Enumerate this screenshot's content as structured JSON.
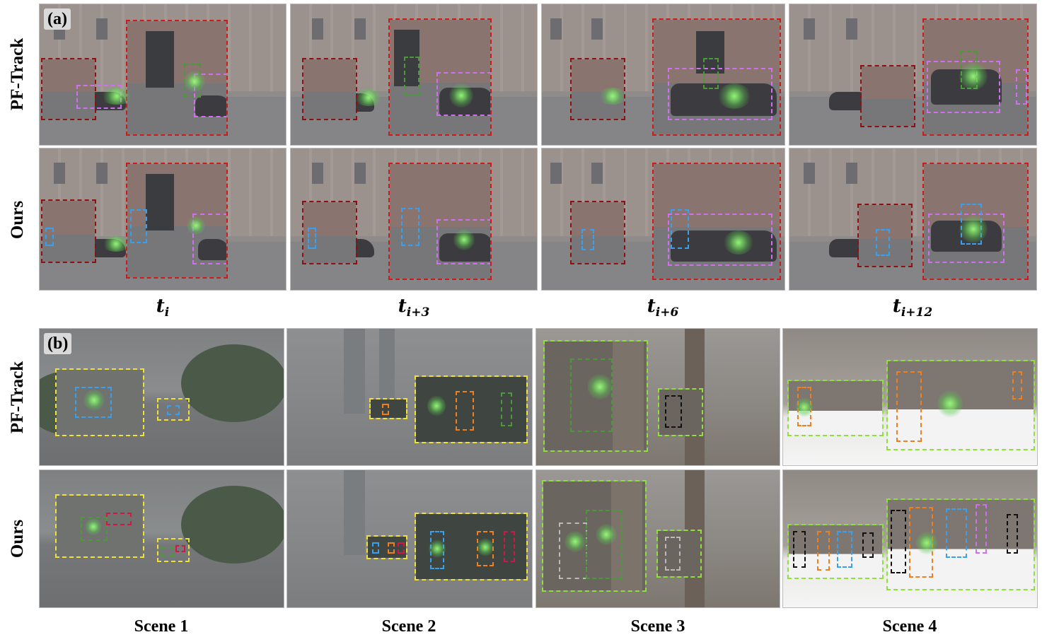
{
  "panel_a": {
    "tag": "(a)",
    "rows": [
      "PF-Track",
      "Ours"
    ],
    "time_labels": [
      {
        "base": "t",
        "sub": "i"
      },
      {
        "base": "t",
        "sub": "i+3"
      },
      {
        "base": "t",
        "sub": "i+6"
      },
      {
        "base": "t",
        "sub": "i+12"
      }
    ]
  },
  "panel_b": {
    "tag": "(b)",
    "rows": [
      "PF-Track",
      "Ours"
    ],
    "scene_labels": [
      "Scene 1",
      "Scene 2",
      "Scene 3",
      "Scene 4"
    ]
  },
  "colors": {
    "zoom_red": "#cc1b1b",
    "zoom_dark_red": "#8c1111",
    "zoom_yellow": "#f0e03a",
    "zoom_lime": "#8fe03a",
    "box_blue": "#3aa0ee",
    "box_orange": "#f0801e",
    "box_green": "#4a9a3a",
    "box_pink": "#d070f0",
    "box_crimson": "#d01848",
    "box_black": "#111111"
  }
}
